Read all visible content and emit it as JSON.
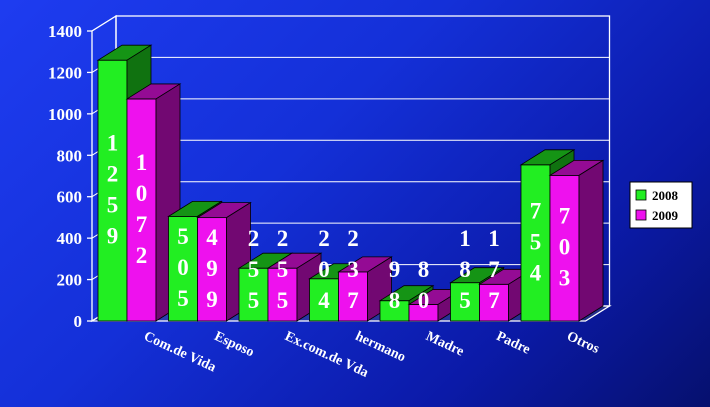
{
  "chart_data": {
    "type": "bar",
    "categories": [
      "Com.de Vida",
      "Esposo",
      "Ex.com.de Vda",
      "hermano",
      "Madre",
      "Padre",
      "Otros"
    ],
    "series": [
      {
        "name": "2008",
        "color": "#22ee22",
        "values": [
          1259,
          505,
          255,
          204,
          98,
          185,
          754
        ],
        "labels": [
          "1\n2\n5\n9",
          "5\n0\n5",
          "2\n5\n5",
          "2\n0\n4",
          "9\n8",
          "1\n8\n5",
          "7\n5\n4"
        ]
      },
      {
        "name": "2009",
        "color": "#ee11ee",
        "values": [
          1072,
          499,
          255,
          237,
          80,
          177,
          703
        ],
        "labels": [
          "1\n0\n7\n2",
          "4\n9\n9",
          "2\n5\n5",
          "2\n3\n7",
          "8\n0",
          "1\n7\n7",
          "7\n0\n3"
        ]
      }
    ],
    "ylim": [
      0,
      1400
    ],
    "yticks": [
      "0",
      "200",
      "400",
      "600",
      "800",
      "1000",
      "1200",
      "1400"
    ],
    "grid": true,
    "legend_position": "right",
    "title": "",
    "xlabel": "",
    "ylabel": ""
  }
}
